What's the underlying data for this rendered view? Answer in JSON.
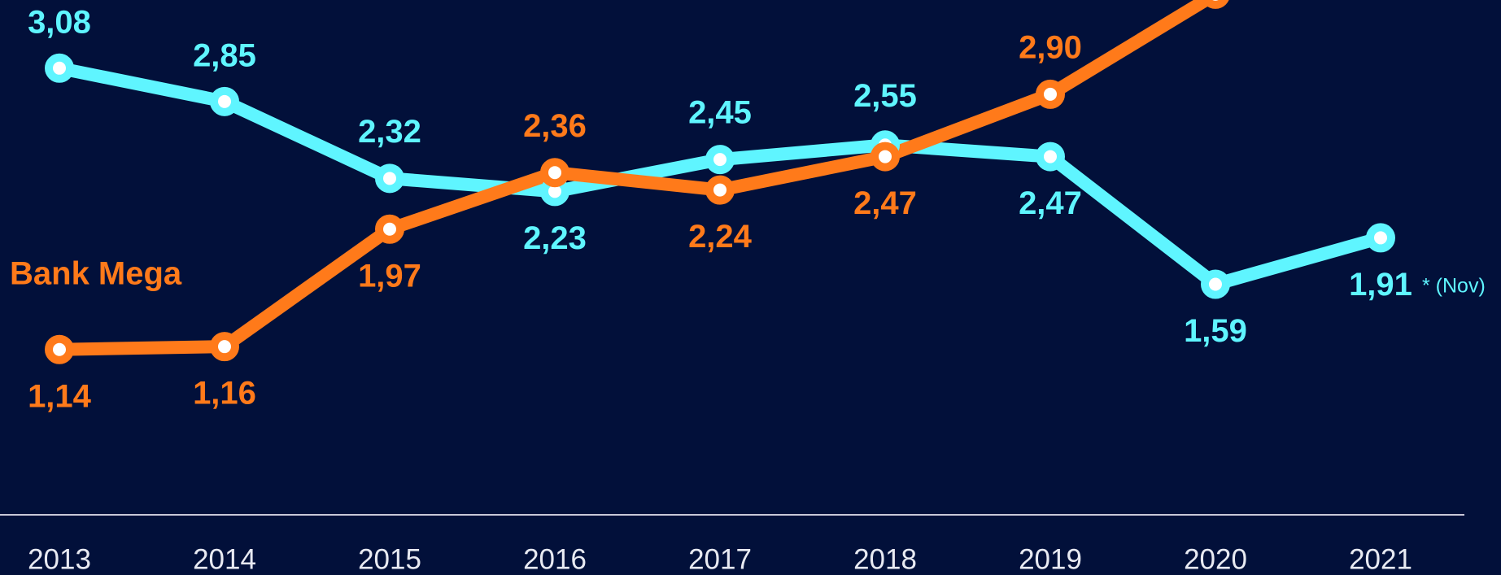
{
  "chart_data": {
    "type": "line",
    "categories": [
      "2013",
      "2014",
      "2015",
      "2016",
      "2017",
      "2018",
      "2019",
      "2020",
      "2021"
    ],
    "series": [
      {
        "color": "#5ff5ff",
        "values": [
          3.08,
          2.85,
          2.32,
          2.23,
          2.45,
          2.55,
          2.47,
          1.59,
          1.91
        ],
        "value_labels": [
          "3,08",
          "2,85",
          "2,32",
          "2,23",
          "2,45",
          "2,55",
          "2,47",
          "1,59",
          "1,91"
        ]
      },
      {
        "name": "Bank Mega",
        "color": "#ff7a1a",
        "values": [
          1.14,
          1.16,
          1.97,
          2.36,
          2.24,
          2.47,
          2.9,
          3.59,
          null
        ],
        "value_labels": [
          "1,14",
          "1,16",
          "1,97",
          "2,36",
          "2,24",
          "2,47",
          "2,90",
          null,
          null
        ]
      }
    ],
    "annotations": [
      "* (Nov)"
    ],
    "ylim": [
      0,
      3.55
    ]
  }
}
